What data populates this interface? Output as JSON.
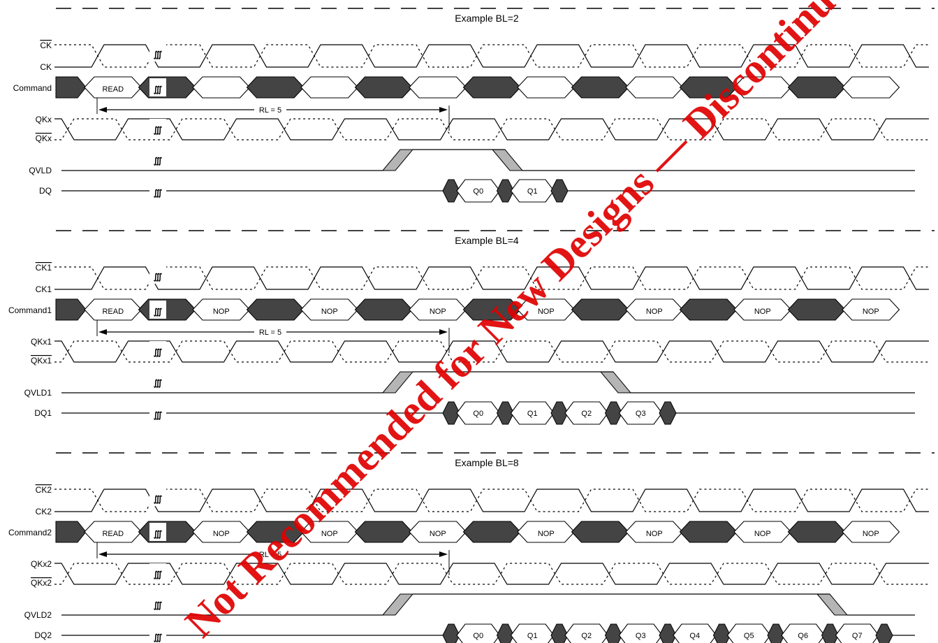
{
  "watermark": "Not Recommended for New Designs — Discontinued Product",
  "break_symbol": "∭",
  "panels": [
    {
      "title": "Example  BL=2",
      "signals": {
        "ck_bar": "CK",
        "ck": "CK",
        "command": "Command",
        "qk": "QKx",
        "qk_bar": "QKx",
        "qvld": "QVLD",
        "dq": "DQ"
      },
      "command_cells": [
        "READ",
        "",
        "",
        "",
        "",
        "",
        "",
        ""
      ],
      "rl_label": "RL = 5",
      "data_cells": [
        "Q0",
        "Q1"
      ],
      "qvld_high_cycles": 1
    },
    {
      "title": "Example  BL=4",
      "signals": {
        "ck_bar": "CK1",
        "ck": "CK1",
        "command": "Command1",
        "qk": "QKx1",
        "qk_bar": "QKx1",
        "qvld": "QVLD1",
        "dq": "DQ1"
      },
      "command_cells": [
        "READ",
        "NOP",
        "NOP",
        "NOP",
        "NOP",
        "NOP",
        "NOP",
        "NOP"
      ],
      "rl_label": "RL = 5",
      "data_cells": [
        "Q0",
        "Q1",
        "Q2",
        "Q3"
      ],
      "qvld_high_cycles": 2
    },
    {
      "title": "Example  BL=8",
      "signals": {
        "ck_bar": "CK2",
        "ck": "CK2",
        "command": "Command2",
        "qk": "QKx2",
        "qk_bar": "QKx2",
        "qvld": "QVLD2",
        "dq": "DQ2"
      },
      "command_cells": [
        "READ",
        "NOP",
        "NOP",
        "NOP",
        "NOP",
        "NOP",
        "NOP",
        "NOP"
      ],
      "rl_label": "RL = 5",
      "data_cells": [
        "Q0",
        "Q1",
        "Q2",
        "Q3",
        "Q4",
        "Q5",
        "Q6",
        "Q7"
      ],
      "qvld_high_cycles": 4
    }
  ]
}
